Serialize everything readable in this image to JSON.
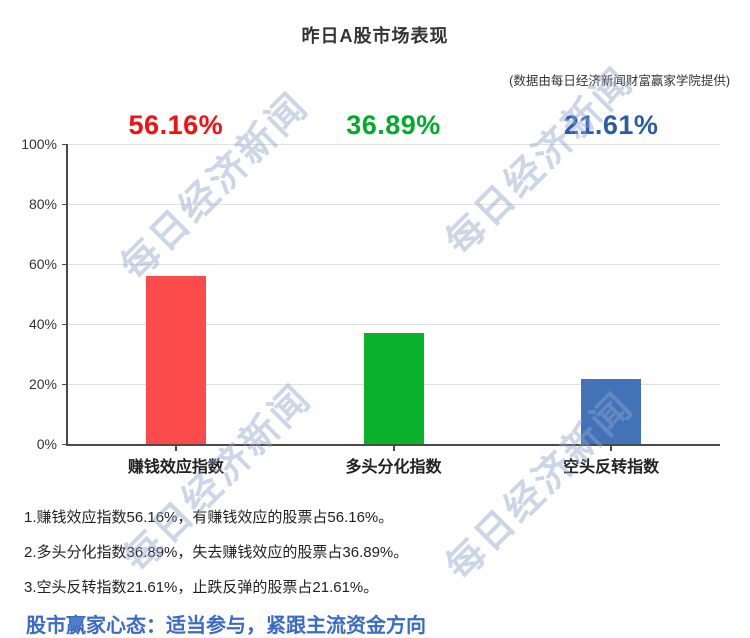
{
  "header": {
    "title": "昨日A股市场表现",
    "subtitle": "(数据由每日经济新闻财富赢家学院提供)"
  },
  "chart_data": {
    "type": "bar",
    "categories": [
      "赚钱效应指数",
      "多头分化指数",
      "空头反转指数"
    ],
    "values": [
      56.16,
      36.89,
      21.61
    ],
    "value_labels": [
      "56.16%",
      "36.89%",
      "21.61%"
    ],
    "bar_colors": [
      "#fb4b4b",
      "#0ab22c",
      "#4273b9"
    ],
    "value_label_colors": [
      "#fb0d0d",
      "#00ac28",
      "#2b5ca9"
    ],
    "title": "昨日A股市场表现",
    "xlabel": "",
    "ylabel": "",
    "ylim": [
      0,
      100
    ],
    "y_ticks": [
      "0%",
      "20%",
      "40%",
      "60%",
      "80%",
      "100%"
    ],
    "grid": true,
    "legend": false
  },
  "notes": [
    "1.赚钱效应指数56.16%，有赚钱效应的股票占56.16%。",
    "2.多头分化指数36.89%，失去赚钱效应的股票占36.89%。",
    "3.空头反转指数21.61%，止跌反弹的股票占21.61%。"
  ],
  "footer": {
    "text": "股市赢家心态：适当参与，紧跟主流资金方向",
    "color": "#3a6bc8"
  },
  "watermark": {
    "text": "每日经济新闻",
    "color": "rgba(143,165,205,0.45)"
  }
}
